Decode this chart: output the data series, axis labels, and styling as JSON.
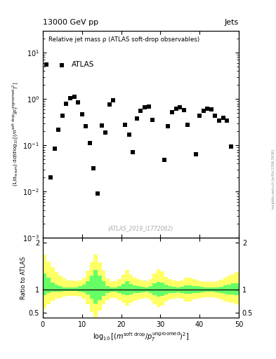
{
  "title_top": "13000 GeV pp",
  "title_right": "Jets",
  "main_title": "Relative jet mass ρ (ATLAS soft-drop observables)",
  "legend_label": "ATLAS",
  "ylabel_ratio": "Ratio to ATLAS",
  "watermark": "(ATLAS_2019_I1772062)",
  "side_text": "mcplots.cern.ch [arXiv:1306.3436]",
  "scatter_x": [
    1,
    2,
    3,
    4,
    5,
    6,
    7,
    8,
    9,
    10,
    11,
    12,
    13,
    14,
    15,
    16,
    17,
    18,
    21,
    22,
    23,
    24,
    25,
    26,
    27,
    28,
    31,
    32,
    33,
    34,
    35,
    36,
    37,
    39,
    40,
    41,
    42,
    43,
    44,
    45,
    46,
    47,
    48
  ],
  "scatter_y": [
    5.5,
    0.02,
    0.085,
    0.22,
    0.44,
    0.78,
    1.05,
    1.1,
    0.85,
    0.46,
    0.26,
    0.11,
    0.032,
    0.009,
    0.27,
    0.19,
    0.75,
    0.95,
    0.28,
    0.17,
    0.072,
    0.38,
    0.55,
    0.65,
    0.68,
    0.35,
    0.048,
    0.26,
    0.52,
    0.62,
    0.67,
    0.58,
    0.28,
    0.065,
    0.43,
    0.55,
    0.61,
    0.59,
    0.44,
    0.34,
    0.39,
    0.34,
    0.095
  ],
  "xlim": [
    0,
    50
  ],
  "ylim_main": [
    0.001,
    30
  ],
  "ylim_ratio": [
    0.4,
    2.1
  ],
  "ratio_yticks": [
    0.5,
    1.0,
    2.0
  ],
  "ratio_yticklabels": [
    "0.5",
    "1",
    "2"
  ],
  "xticks": [
    0,
    10,
    20,
    30,
    40,
    50
  ],
  "marker": "s",
  "marker_color": "black",
  "marker_size": 4.5,
  "green_band_x": [
    0,
    1,
    2,
    3,
    4,
    5,
    6,
    7,
    8,
    9,
    10,
    11,
    12,
    13,
    14,
    15,
    16,
    17,
    18,
    19,
    20,
    21,
    22,
    23,
    24,
    25,
    26,
    27,
    28,
    29,
    30,
    31,
    32,
    33,
    34,
    35,
    36,
    37,
    38,
    39,
    40,
    41,
    42,
    43,
    44,
    45,
    46,
    47,
    48,
    49
  ],
  "green_band_lo": [
    0.88,
    0.92,
    0.95,
    0.96,
    0.96,
    0.97,
    0.97,
    0.97,
    0.97,
    0.96,
    0.94,
    0.89,
    0.8,
    0.7,
    0.78,
    0.87,
    0.93,
    0.95,
    0.95,
    0.93,
    0.9,
    0.88,
    0.9,
    0.92,
    0.93,
    0.94,
    0.95,
    0.92,
    0.88,
    0.85,
    0.86,
    0.9,
    0.92,
    0.93,
    0.94,
    0.93,
    0.91,
    0.91,
    0.92,
    0.93,
    0.94,
    0.95,
    0.95,
    0.95,
    0.94,
    0.93,
    0.91,
    0.9,
    0.89,
    0.88
  ],
  "green_band_hi": [
    1.35,
    1.25,
    1.15,
    1.1,
    1.07,
    1.05,
    1.04,
    1.04,
    1.05,
    1.07,
    1.1,
    1.18,
    1.3,
    1.42,
    1.3,
    1.18,
    1.08,
    1.05,
    1.05,
    1.07,
    1.12,
    1.18,
    1.12,
    1.09,
    1.07,
    1.06,
    1.05,
    1.08,
    1.13,
    1.17,
    1.15,
    1.1,
    1.08,
    1.06,
    1.05,
    1.06,
    1.09,
    1.09,
    1.08,
    1.07,
    1.06,
    1.05,
    1.04,
    1.04,
    1.05,
    1.06,
    1.09,
    1.11,
    1.13,
    1.14
  ],
  "yellow_band_lo": [
    0.6,
    0.68,
    0.76,
    0.8,
    0.82,
    0.85,
    0.86,
    0.87,
    0.87,
    0.85,
    0.8,
    0.68,
    0.52,
    0.42,
    0.55,
    0.68,
    0.78,
    0.82,
    0.82,
    0.78,
    0.72,
    0.65,
    0.72,
    0.76,
    0.79,
    0.81,
    0.82,
    0.78,
    0.68,
    0.62,
    0.65,
    0.75,
    0.79,
    0.81,
    0.82,
    0.8,
    0.75,
    0.75,
    0.79,
    0.81,
    0.82,
    0.83,
    0.84,
    0.84,
    0.82,
    0.79,
    0.75,
    0.73,
    0.71,
    0.68
  ],
  "yellow_band_hi": [
    1.75,
    1.6,
    1.48,
    1.38,
    1.3,
    1.24,
    1.2,
    1.19,
    1.18,
    1.2,
    1.26,
    1.4,
    1.58,
    1.75,
    1.58,
    1.4,
    1.24,
    1.18,
    1.18,
    1.22,
    1.32,
    1.42,
    1.32,
    1.26,
    1.22,
    1.19,
    1.18,
    1.22,
    1.34,
    1.43,
    1.39,
    1.27,
    1.22,
    1.19,
    1.18,
    1.2,
    1.26,
    1.26,
    1.22,
    1.19,
    1.18,
    1.17,
    1.16,
    1.16,
    1.18,
    1.21,
    1.26,
    1.3,
    1.33,
    1.37
  ]
}
